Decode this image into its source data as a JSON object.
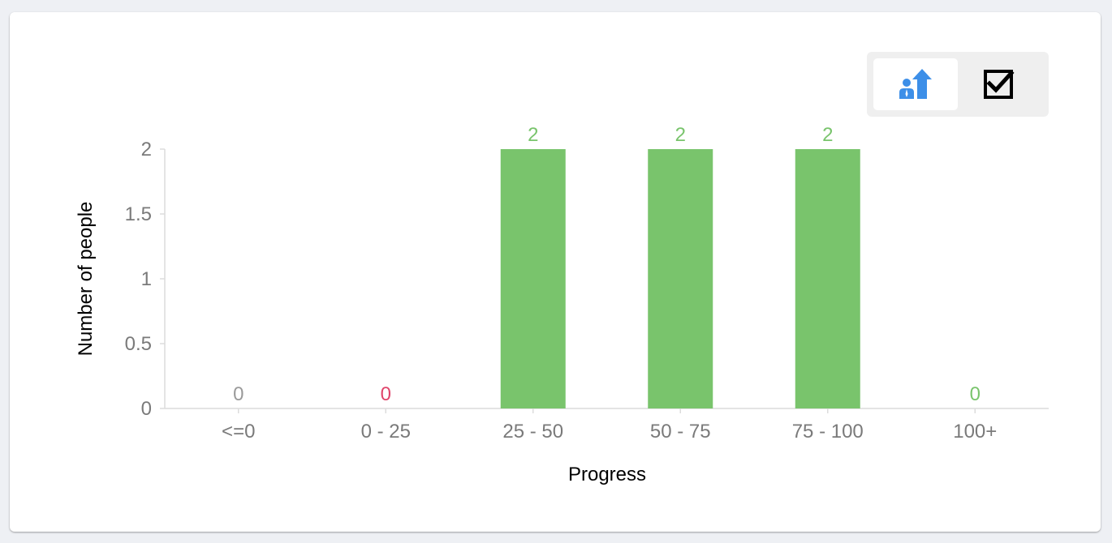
{
  "toolbar": {
    "buttons": [
      {
        "icon": "people-progress-icon",
        "active": true,
        "color": "#3d8fe8"
      },
      {
        "icon": "checkbox-checked-icon",
        "active": false,
        "color": "#000000"
      }
    ]
  },
  "chart_data": {
    "type": "bar",
    "categories": [
      "<=0",
      "0 - 25",
      "25 - 50",
      "50 - 75",
      "75 - 100",
      "100+"
    ],
    "values": [
      0,
      0,
      2,
      2,
      2,
      0
    ],
    "value_label_colors": [
      "#9a9a9a",
      "#e0456b",
      "#79c46c",
      "#79c46c",
      "#79c46c",
      "#79c46c"
    ],
    "bar_color": "#79c46c",
    "xlabel": "Progress",
    "ylabel": "Number of people",
    "ylim": [
      0,
      2
    ],
    "yticks": [
      0,
      0.5,
      1,
      1.5,
      2
    ],
    "ytick_labels": [
      "0",
      "0.5",
      "1",
      "1.5",
      "2"
    ],
    "grid": false,
    "legend": "none"
  }
}
